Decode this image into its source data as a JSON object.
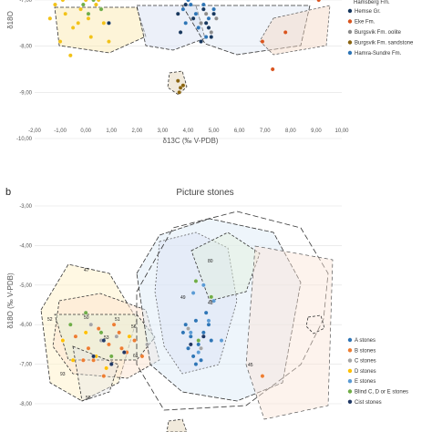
{
  "chart_data": [
    {
      "panel": "",
      "type": "scatter",
      "title": "",
      "xlabel": "δ13C (‰ V-PDB)",
      "ylabel": "δ18O",
      "xlim": [
        -2.0,
        10.0
      ],
      "ylim": [
        -10.0,
        -7.0
      ],
      "xticks": [
        "-2,00",
        "-1,00",
        "0,00",
        "1,00",
        "2,00",
        "3,00",
        "4,00",
        "5,00",
        "6,00",
        "7,00",
        "8,00",
        "9,00",
        "10,00"
      ],
      "yticks": [
        "-7,00",
        "-8,00",
        "-9,00",
        "-10,00"
      ],
      "grid": "horizontal",
      "legend_position": "right",
      "series": [
        {
          "name": "Hemse Gr.",
          "color": "#17375e",
          "x": [
            0.9,
            3.6,
            3.9,
            4.2,
            4.4,
            4.6,
            4.7,
            4.9,
            5.0,
            4.5,
            3.7,
            4.8
          ],
          "y": [
            -7.5,
            -7.3,
            -7.1,
            -7.4,
            -7.6,
            -7.2,
            -7.5,
            -7.8,
            -7.3,
            -7.9,
            -7.7,
            -7.6
          ]
        },
        {
          "name": "Eke Fm.",
          "color": "#d9541e",
          "x": [
            7.3,
            7.8,
            6.9,
            9.1
          ],
          "y": [
            -8.5,
            -7.7,
            -7.9,
            -7.0
          ]
        },
        {
          "name": "Burgsvik Fm. oolite",
          "color": "#8c8c8c",
          "x": [
            4.5,
            4.7,
            4.9,
            5.1
          ],
          "y": [
            -7.5,
            -7.3,
            -7.7,
            -7.4
          ]
        },
        {
          "name": "Burgsvik Fm. sandstone",
          "color": "#8a6410",
          "x": [
            3.6,
            3.7,
            3.8,
            3.65
          ],
          "y": [
            -8.75,
            -8.9,
            -8.85,
            -9.0
          ]
        },
        {
          "name": "Hamra-Sundre Fm.",
          "color": "#2e75b6",
          "x": [
            3.8,
            4.0,
            4.3,
            4.6,
            4.8,
            5.0,
            4.4,
            3.9,
            4.7,
            4.1
          ],
          "y": [
            -7.2,
            -7.0,
            -7.3,
            -7.1,
            -7.4,
            -7.2,
            -7.6,
            -7.5,
            -7.8,
            -7.1
          ]
        },
        {
          "name": "",
          "color": "#f2c218",
          "x": [
            -1.2,
            -0.8,
            -0.5,
            -0.2,
            0.1,
            0.4,
            0.7,
            -1.0,
            0.2,
            0.6,
            -0.6,
            0.9,
            0.0,
            -0.3,
            -1.4,
            0.5,
            -0.9
          ],
          "y": [
            -7.1,
            -7.3,
            -7.6,
            -7.2,
            -7.4,
            -7.1,
            -7.5,
            -7.9,
            -7.8,
            -7.2,
            -8.2,
            -7.9,
            -7.0,
            -7.5,
            -7.4,
            -7.0,
            -7.0
          ]
        },
        {
          "name": "",
          "color": "#70ad47",
          "x": [
            -0.1,
            0.3,
            0.6,
            0.1
          ],
          "y": [
            -7.1,
            -7.0,
            -7.2,
            -7.3
          ]
        }
      ],
      "legend_entries": [
        {
          "name": "Hemse Gr.",
          "color": "#17375e"
        },
        {
          "name": "Eke Fm.",
          "color": "#d9541e"
        },
        {
          "name": "Burgsvik Fm. oolite",
          "color": "#8c8c8c"
        },
        {
          "name": "Burgsvik Fm. sandstone",
          "color": "#8a6410"
        },
        {
          "name": "Hamra-Sundre Fm.",
          "color": "#2e75b6"
        }
      ]
    },
    {
      "panel": "b",
      "type": "scatter",
      "title": "Picture stones",
      "xlabel": "",
      "ylabel": "δ18O (‰ V-PDB)",
      "ylim": [
        -8.3,
        -3.0
      ],
      "yticks": [
        "-3,00",
        "-4,00",
        "-5,00",
        "-6,00",
        "-7,00",
        "-8,00"
      ],
      "grid": "horizontal",
      "legend_position": "right",
      "series": [
        {
          "name": "A stones",
          "color": "#2e75b6",
          "x": [
            3.9,
            4.1,
            4.3,
            4.4,
            4.6,
            4.2,
            4.8,
            4.0,
            4.5,
            4.7,
            4.3,
            4.9,
            3.8
          ],
          "y": [
            -6.0,
            -6.3,
            -5.9,
            -6.5,
            -6.2,
            -6.8,
            -6.0,
            -6.6,
            -6.9,
            -5.7,
            -7.0,
            -6.4,
            -6.2
          ]
        },
        {
          "name": "B stones",
          "color": "#ed7d31",
          "x": [
            -0.4,
            0.1,
            0.5,
            0.9,
            1.3,
            1.6,
            0.3,
            1.1,
            1.9,
            0.7,
            6.9,
            2.2,
            1.4,
            -0.1
          ],
          "y": [
            -6.3,
            -6.6,
            -6.1,
            -6.5,
            -6.2,
            -6.7,
            -6.9,
            -6.0,
            -6.4,
            -7.3,
            -7.3,
            -6.8,
            -6.6,
            -6.9
          ]
        },
        {
          "name": "C stones",
          "color": "#a5a5a5",
          "x": [
            0.2,
            0.6,
            1.2,
            4.0,
            4.5,
            2.4
          ],
          "y": [
            -6.0,
            -6.4,
            -6.3,
            -6.1,
            -6.6,
            -6.5
          ]
        },
        {
          "name": "D stones",
          "color": "#ffc000",
          "x": [
            -0.9,
            -0.5,
            0.0,
            0.4,
            0.8,
            1.7
          ],
          "y": [
            -6.4,
            -6.9,
            -6.2,
            -6.8,
            -7.1,
            -6.3
          ]
        },
        {
          "name": "E stones",
          "color": "#5b9bd5",
          "x": [
            4.2,
            4.6,
            5.0,
            4.1,
            4.8,
            5.3,
            4.4
          ],
          "y": [
            -5.2,
            -5.0,
            -5.4,
            -6.2,
            -5.9,
            -6.4,
            -6.7
          ]
        },
        {
          "name": "Blind C, D or E stones",
          "color": "#70ad47",
          "x": [
            -0.6,
            0.0,
            0.6,
            4.3,
            4.9,
            4.4,
            1.0
          ],
          "y": [
            -6.0,
            -5.7,
            -6.2,
            -4.9,
            -5.3,
            -6.4,
            -6.8
          ]
        },
        {
          "name": "Cist stones",
          "color": "#203864",
          "x": [
            0.3,
            1.0,
            4.1,
            4.6,
            0.7,
            1.5
          ],
          "y": [
            -6.8,
            -7.0,
            -6.5,
            -6.3,
            -6.4,
            -6.7
          ]
        }
      ],
      "point_labels": [
        "47",
        "52",
        "50",
        "51",
        "80",
        "53",
        "56",
        "93",
        "61",
        "58",
        "45",
        "49",
        "48"
      ],
      "legend_entries": [
        {
          "name": "A stones",
          "color": "#2e75b6"
        },
        {
          "name": "B stones",
          "color": "#ed7d31"
        },
        {
          "name": "C stones",
          "color": "#a5a5a5"
        },
        {
          "name": "D stones",
          "color": "#ffc000"
        },
        {
          "name": "E stones",
          "color": "#5b9bd5"
        },
        {
          "name": "Blind C, D or E stones",
          "color": "#70ad47"
        },
        {
          "name": "Cist stones",
          "color": "#203864"
        }
      ]
    }
  ],
  "legend_top_partial": "Hamsberg Fm.",
  "axis_top_partial": "δ18O"
}
